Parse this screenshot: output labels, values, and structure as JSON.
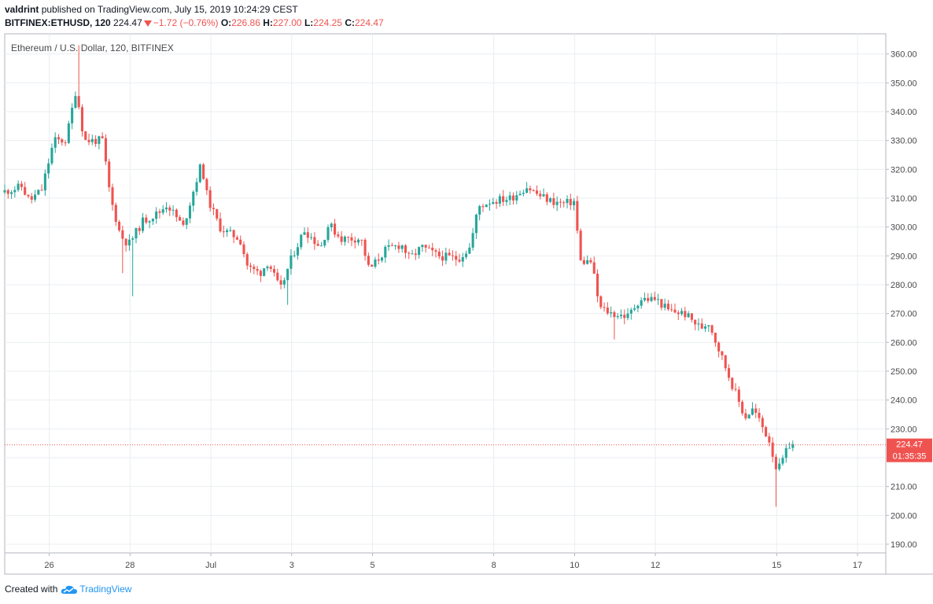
{
  "header": {
    "author": "valdrint",
    "published_text": "published on TradingView.com, July 15, 2019 10:24:29 CEST",
    "symbol": "BITFINEX:ETHUSD, 120",
    "last_price": "224.47",
    "change": "−1.72 (−0.76%)",
    "open_label": "O:",
    "open_value": "226.86",
    "high_label": "H:",
    "high_value": "227.00",
    "low_label": "L:",
    "low_value": "224.25",
    "close_label": "C:",
    "close_value": "224.47"
  },
  "footer": {
    "created_with": "Created with",
    "brand": "TradingView"
  },
  "colors": {
    "up": "#26a69a",
    "down": "#ef5350",
    "grid": "#e9eef2",
    "axis_text": "#4a4a4a"
  },
  "chart_data": {
    "type": "candlestick",
    "title": "Ethereum / U.S. Dollar, 120, BITFINEX",
    "ylim": [
      187,
      367
    ],
    "y_ticks": [
      "190.00",
      "200.00",
      "210.00",
      "220.00",
      "230.00",
      "240.00",
      "250.00",
      "260.00",
      "270.00",
      "280.00",
      "290.00",
      "300.00",
      "310.00",
      "320.00",
      "330.00",
      "340.00",
      "350.00",
      "360.00"
    ],
    "x_ticks": [
      {
        "label": "26",
        "day": 1.5
      },
      {
        "label": "28",
        "day": 3.5
      },
      {
        "label": "Jul",
        "day": 5.5
      },
      {
        "label": "3",
        "day": 7.5
      },
      {
        "label": "5",
        "day": 9.5
      },
      {
        "label": "8",
        "day": 12.5
      },
      {
        "label": "10",
        "day": 14.5
      },
      {
        "label": "12",
        "day": 16.5
      },
      {
        "label": "15",
        "day": 19.5
      },
      {
        "label": "17",
        "day": 21.5
      }
    ],
    "xlim_days": [
      0.4,
      22.2
    ],
    "last_price_label": "224.47",
    "countdown_label": "01:35:35",
    "last_price": 224.47,
    "anchors": [
      {
        "day": 0.4,
        "p": 312
      },
      {
        "day": 0.9,
        "p": 314
      },
      {
        "day": 1.1,
        "p": 309
      },
      {
        "day": 1.4,
        "p": 313
      },
      {
        "day": 1.7,
        "p": 330
      },
      {
        "day": 2.0,
        "p": 330
      },
      {
        "day": 2.25,
        "p": 348
      },
      {
        "day": 2.45,
        "p": 330
      },
      {
        "day": 2.9,
        "p": 330
      },
      {
        "day": 3.1,
        "p": 310
      },
      {
        "day": 3.35,
        "p": 297
      },
      {
        "day": 3.55,
        "p": 294
      },
      {
        "day": 3.9,
        "p": 302
      },
      {
        "day": 4.3,
        "p": 305
      },
      {
        "day": 4.5,
        "p": 308
      },
      {
        "day": 4.9,
        "p": 300
      },
      {
        "day": 5.2,
        "p": 315
      },
      {
        "day": 5.35,
        "p": 322
      },
      {
        "day": 5.5,
        "p": 310
      },
      {
        "day": 5.8,
        "p": 300
      },
      {
        "day": 6.0,
        "p": 298
      },
      {
        "day": 6.3,
        "p": 296
      },
      {
        "day": 6.5,
        "p": 286
      },
      {
        "day": 6.8,
        "p": 284
      },
      {
        "day": 7.0,
        "p": 288
      },
      {
        "day": 7.3,
        "p": 278
      },
      {
        "day": 7.6,
        "p": 290
      },
      {
        "day": 7.9,
        "p": 299
      },
      {
        "day": 8.3,
        "p": 293
      },
      {
        "day": 8.5,
        "p": 301
      },
      {
        "day": 8.8,
        "p": 296
      },
      {
        "day": 9.3,
        "p": 296
      },
      {
        "day": 9.5,
        "p": 285
      },
      {
        "day": 9.9,
        "p": 292
      },
      {
        "day": 10.3,
        "p": 294
      },
      {
        "day": 10.5,
        "p": 289
      },
      {
        "day": 10.8,
        "p": 293
      },
      {
        "day": 11.2,
        "p": 290
      },
      {
        "day": 11.7,
        "p": 289
      },
      {
        "day": 12.0,
        "p": 293
      },
      {
        "day": 12.2,
        "p": 307
      },
      {
        "day": 12.5,
        "p": 309
      },
      {
        "day": 13.0,
        "p": 310
      },
      {
        "day": 13.4,
        "p": 314
      },
      {
        "day": 13.7,
        "p": 311
      },
      {
        "day": 14.0,
        "p": 309
      },
      {
        "day": 14.3,
        "p": 308
      },
      {
        "day": 14.6,
        "p": 309
      },
      {
        "day": 14.7,
        "p": 288
      },
      {
        "day": 15.0,
        "p": 288
      },
      {
        "day": 15.2,
        "p": 272
      },
      {
        "day": 15.5,
        "p": 270
      },
      {
        "day": 15.9,
        "p": 269
      },
      {
        "day": 16.2,
        "p": 275
      },
      {
        "day": 16.6,
        "p": 275
      },
      {
        "day": 16.9,
        "p": 271
      },
      {
        "day": 17.3,
        "p": 270
      },
      {
        "day": 17.7,
        "p": 265
      },
      {
        "day": 17.9,
        "p": 267
      },
      {
        "day": 18.6,
        "p": 241
      },
      {
        "day": 18.8,
        "p": 234
      },
      {
        "day": 19.0,
        "p": 237
      },
      {
        "day": 19.4,
        "p": 226
      },
      {
        "day": 19.6,
        "p": 215
      },
      {
        "day": 19.9,
        "p": 224.5
      }
    ],
    "spikes": [
      {
        "day": 2.2,
        "high": 363
      },
      {
        "day": 3.3,
        "low": 284
      },
      {
        "day": 3.6,
        "low": 276
      },
      {
        "day": 7.4,
        "low": 273
      },
      {
        "day": 15.2,
        "low": 279
      },
      {
        "day": 15.5,
        "low": 261
      },
      {
        "day": 19.5,
        "low": 203
      }
    ]
  }
}
